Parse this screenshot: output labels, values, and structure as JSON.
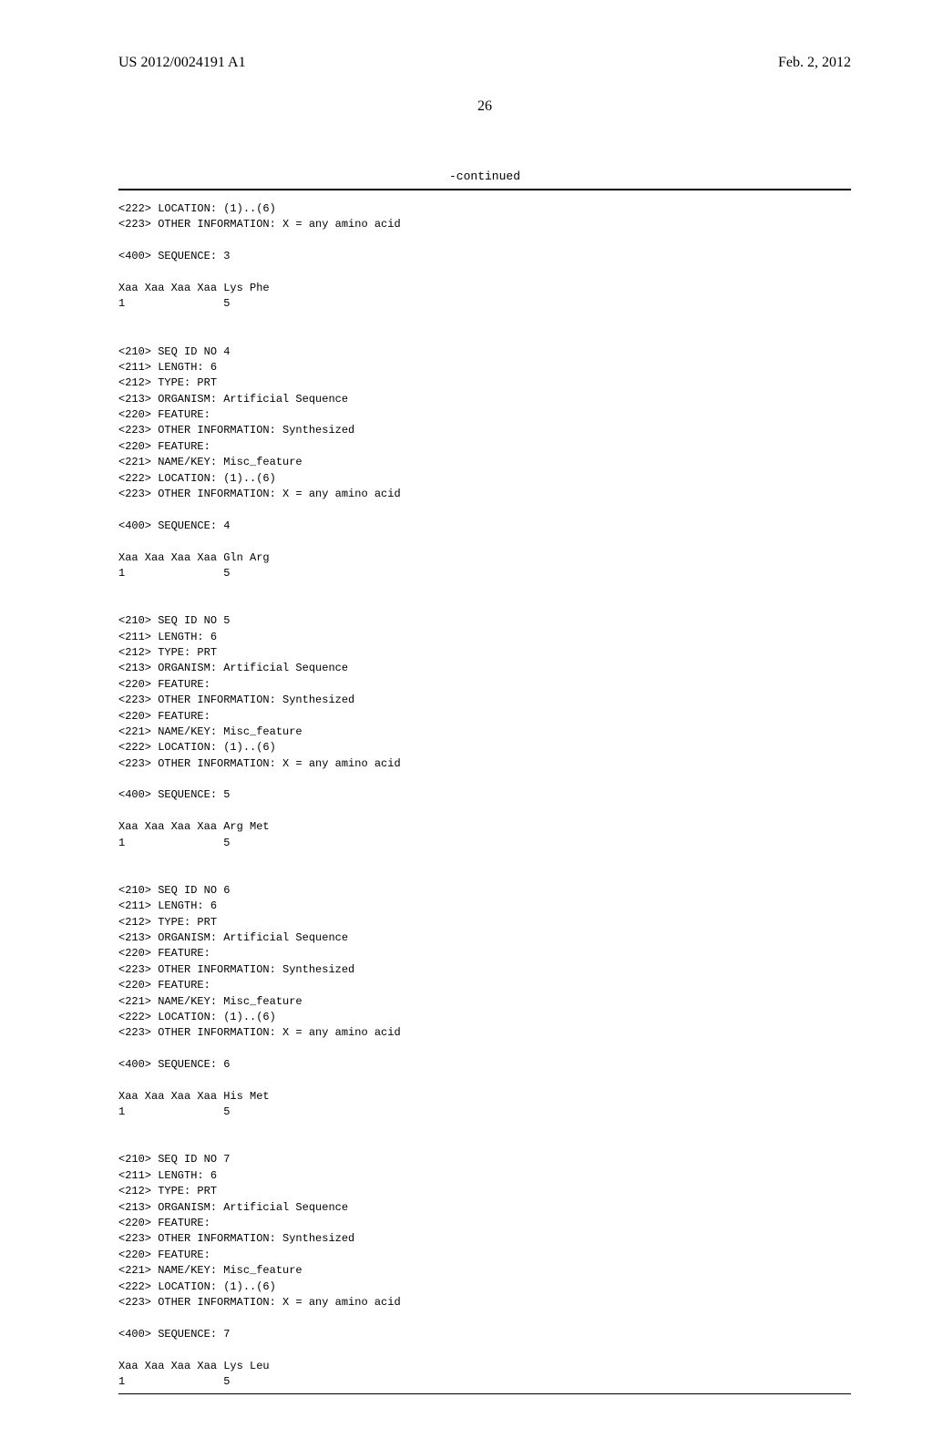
{
  "header": {
    "pub_number": "US 2012/0024191 A1",
    "date": "Feb. 2, 2012"
  },
  "page_number": "26",
  "continued_label": "-continued",
  "seq_listing": "<222> LOCATION: (1)..(6)\n<223> OTHER INFORMATION: X = any amino acid\n\n<400> SEQUENCE: 3\n\nXaa Xaa Xaa Xaa Lys Phe\n1               5\n\n\n<210> SEQ ID NO 4\n<211> LENGTH: 6\n<212> TYPE: PRT\n<213> ORGANISM: Artificial Sequence\n<220> FEATURE:\n<223> OTHER INFORMATION: Synthesized\n<220> FEATURE:\n<221> NAME/KEY: Misc_feature\n<222> LOCATION: (1)..(6)\n<223> OTHER INFORMATION: X = any amino acid\n\n<400> SEQUENCE: 4\n\nXaa Xaa Xaa Xaa Gln Arg\n1               5\n\n\n<210> SEQ ID NO 5\n<211> LENGTH: 6\n<212> TYPE: PRT\n<213> ORGANISM: Artificial Sequence\n<220> FEATURE:\n<223> OTHER INFORMATION: Synthesized\n<220> FEATURE:\n<221> NAME/KEY: Misc_feature\n<222> LOCATION: (1)..(6)\n<223> OTHER INFORMATION: X = any amino acid\n\n<400> SEQUENCE: 5\n\nXaa Xaa Xaa Xaa Arg Met\n1               5\n\n\n<210> SEQ ID NO 6\n<211> LENGTH: 6\n<212> TYPE: PRT\n<213> ORGANISM: Artificial Sequence\n<220> FEATURE:\n<223> OTHER INFORMATION: Synthesized\n<220> FEATURE:\n<221> NAME/KEY: Misc_feature\n<222> LOCATION: (1)..(6)\n<223> OTHER INFORMATION: X = any amino acid\n\n<400> SEQUENCE: 6\n\nXaa Xaa Xaa Xaa His Met\n1               5\n\n\n<210> SEQ ID NO 7\n<211> LENGTH: 6\n<212> TYPE: PRT\n<213> ORGANISM: Artificial Sequence\n<220> FEATURE:\n<223> OTHER INFORMATION: Synthesized\n<220> FEATURE:\n<221> NAME/KEY: Misc_feature\n<222> LOCATION: (1)..(6)\n<223> OTHER INFORMATION: X = any amino acid\n\n<400> SEQUENCE: 7\n\nXaa Xaa Xaa Xaa Lys Leu\n1               5"
}
